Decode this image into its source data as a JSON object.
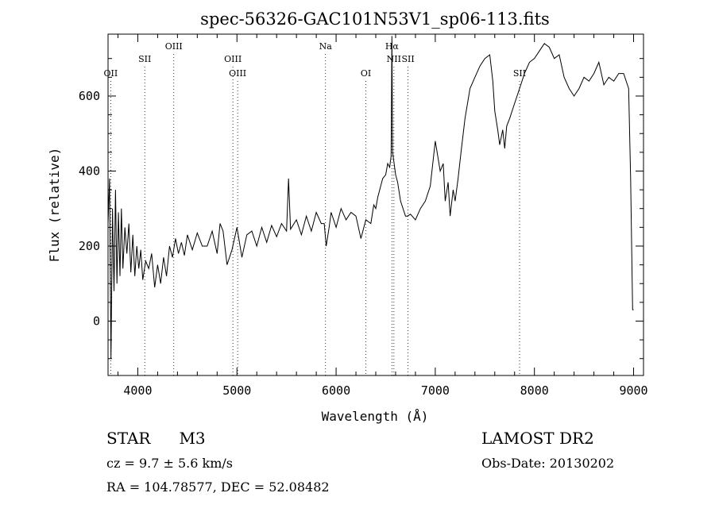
{
  "chart_data": {
    "type": "line",
    "title": "spec-56326-GAC101N53V1_sp06-113.fits",
    "xlabel": "Wavelength (Å)",
    "ylabel": "Flux (relative)",
    "xlim": [
      3700,
      9100
    ],
    "ylim": [
      -145,
      765
    ],
    "x_ticks": [
      4000,
      5000,
      6000,
      7000,
      8000,
      9000
    ],
    "y_ticks": [
      0,
      200,
      400,
      600
    ],
    "x_tick_labels": [
      "4000",
      "5000",
      "6000",
      "7000",
      "8000",
      "9000"
    ],
    "y_tick_labels": [
      "0",
      "200",
      "400",
      "600"
    ],
    "grid": false,
    "lines": [
      {
        "label": "OII",
        "x": 3727,
        "row": 3
      },
      {
        "label": "SII",
        "x": 4070,
        "row": 2
      },
      {
        "label": "OIII",
        "x": 4363,
        "row": 1
      },
      {
        "label": "OIII",
        "x": 4959,
        "row": 2
      },
      {
        "label": "OIII",
        "x": 5007,
        "row": 3
      },
      {
        "label": "Na",
        "x": 5893,
        "row": 1
      },
      {
        "label": "OI",
        "x": 6300,
        "row": 3
      },
      {
        "label": "Hα",
        "x": 6563,
        "row": 1
      },
      {
        "label": "NII",
        "x": 6583,
        "row": 2
      },
      {
        "label": "SII",
        "x": 6725,
        "row": 2
      },
      {
        "label": "SII",
        "x": 7850,
        "row": 3
      }
    ],
    "series": [
      {
        "x": [
          3700,
          3715,
          3730,
          3745,
          3760,
          3775,
          3790,
          3805,
          3820,
          3835,
          3850,
          3870,
          3890,
          3910,
          3930,
          3950,
          3970,
          3990,
          4010,
          4030,
          4050,
          4080,
          4110,
          4140,
          4170,
          4200,
          4230,
          4260,
          4290,
          4320,
          4350,
          4380,
          4410,
          4440,
          4470,
          4500,
          4550,
          4600,
          4650,
          4700,
          4750,
          4800,
          4830,
          4860,
          4900,
          4950,
          5000,
          5050,
          5100,
          5150,
          5200,
          5250,
          5300,
          5350,
          5400,
          5450,
          5500,
          5520,
          5540,
          5600,
          5650,
          5700,
          5750,
          5800,
          5850,
          5880,
          5900,
          5930,
          5950,
          6000,
          6050,
          6100,
          6150,
          6200,
          6250,
          6300,
          6350,
          6380,
          6400,
          6420,
          6450,
          6470,
          6500,
          6520,
          6540,
          6555,
          6563,
          6570,
          6585,
          6600,
          6620,
          6650,
          6700,
          6720,
          6750,
          6800,
          6850,
          6900,
          6950,
          7000,
          7050,
          7080,
          7100,
          7130,
          7150,
          7180,
          7200,
          7230,
          7260,
          7300,
          7350,
          7400,
          7450,
          7500,
          7550,
          7580,
          7600,
          7630,
          7650,
          7680,
          7700,
          7720,
          7750,
          7800,
          7850,
          7900,
          7950,
          8000,
          8050,
          8100,
          8150,
          8200,
          8250,
          8300,
          8350,
          8400,
          8450,
          8500,
          8550,
          8600,
          8650,
          8700,
          8750,
          8800,
          8850,
          8900,
          8950,
          8970,
          8990,
          9000
        ],
        "y": [
          260,
          380,
          -100,
          300,
          80,
          350,
          100,
          290,
          120,
          300,
          140,
          250,
          180,
          260,
          130,
          230,
          120,
          200,
          140,
          190,
          110,
          160,
          140,
          180,
          90,
          150,
          100,
          170,
          120,
          200,
          170,
          220,
          180,
          210,
          175,
          230,
          190,
          235,
          200,
          200,
          240,
          180,
          260,
          240,
          150,
          190,
          250,
          170,
          230,
          240,
          200,
          250,
          210,
          255,
          225,
          260,
          240,
          380,
          245,
          270,
          230,
          280,
          240,
          290,
          260,
          260,
          200,
          250,
          290,
          250,
          300,
          270,
          290,
          280,
          220,
          270,
          260,
          310,
          300,
          330,
          360,
          380,
          390,
          420,
          410,
          440,
          760,
          450,
          420,
          390,
          370,
          320,
          280,
          280,
          285,
          270,
          300,
          320,
          360,
          480,
          400,
          420,
          320,
          370,
          280,
          350,
          320,
          380,
          450,
          540,
          620,
          650,
          680,
          700,
          710,
          640,
          560,
          510,
          470,
          510,
          460,
          520,
          540,
          580,
          620,
          660,
          690,
          700,
          720,
          740,
          730,
          700,
          710,
          650,
          620,
          600,
          620,
          650,
          640,
          660,
          690,
          630,
          650,
          640,
          660,
          660,
          620,
          380,
          30,
          30
        ]
      }
    ]
  },
  "footer": {
    "object": "STAR",
    "subclass": "M3",
    "survey": "LAMOST DR2",
    "redshift": "cz = 9.7 ± 5.6 km/s",
    "obs_date": "Obs-Date: 20130202",
    "coords": "RA = 104.78577, DEC =  52.08482"
  }
}
